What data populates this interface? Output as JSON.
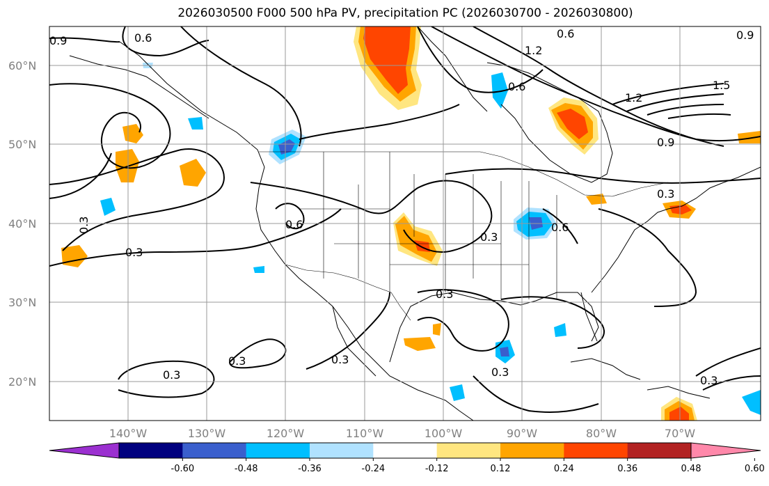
{
  "title": "2026030500 F000 500 hPa PV, precipitation PC (2026030700 - 2026030800)",
  "lat_labels": [
    "60°N",
    "50°N",
    "40°N",
    "30°N",
    "20°N"
  ],
  "lon_labels": [
    "140°W",
    "130°W",
    "120°W",
    "110°W",
    "100°W",
    "90°W",
    "80°W",
    "70°W"
  ],
  "colorbar": {
    "tick_labels": [
      "-0.60",
      "-0.48",
      "-0.36",
      "-0.24",
      "-0.12",
      "0.12",
      "0.24",
      "0.36",
      "0.48",
      "0.60"
    ],
    "colors": [
      "#9b30d0",
      "#00007f",
      "#3a5fcd",
      "#00bfff",
      "#b0e2ff",
      "#ffffff",
      "#ffe680",
      "#ffa500",
      "#ff4500",
      "#b22222",
      "#ff88aa"
    ]
  },
  "contour_labels": [
    "0.6",
    "0.9",
    "1.2",
    "1.5",
    "0.3"
  ],
  "map": {
    "lat_range": [
      15,
      65
    ],
    "lon_range": [
      -150,
      -59
    ],
    "grid": true
  }
}
